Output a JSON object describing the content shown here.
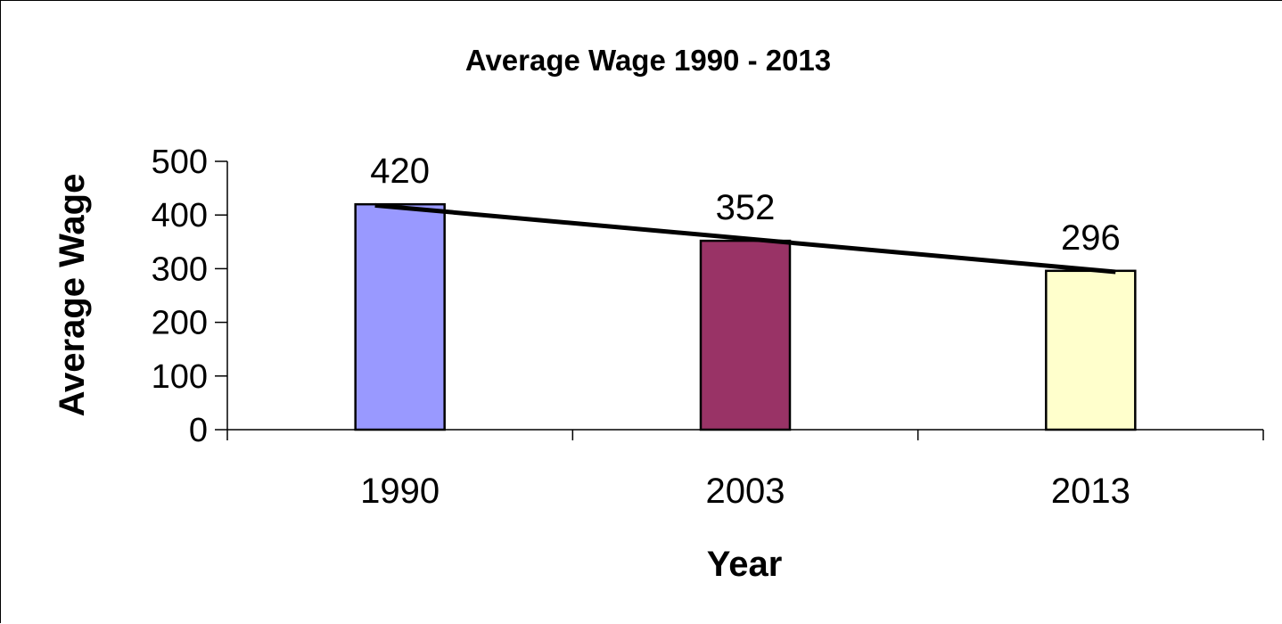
{
  "chart_data": {
    "type": "bar",
    "title": "Average Wage 1990 - 2013",
    "xlabel": "Year",
    "ylabel": "Average Wage",
    "categories": [
      "1990",
      "2003",
      "2013"
    ],
    "values": [
      420,
      352,
      296
    ],
    "data_labels": [
      "420",
      "352",
      "296"
    ],
    "bar_colors": [
      "#9999ff",
      "#993366",
      "#ffffcc"
    ],
    "yticks": [
      "0",
      "100",
      "200",
      "300",
      "400",
      "500"
    ],
    "ylim": [
      0,
      500
    ],
    "trendline": {
      "type": "linear",
      "color": "#000000"
    },
    "grid": false,
    "legend": "none"
  }
}
